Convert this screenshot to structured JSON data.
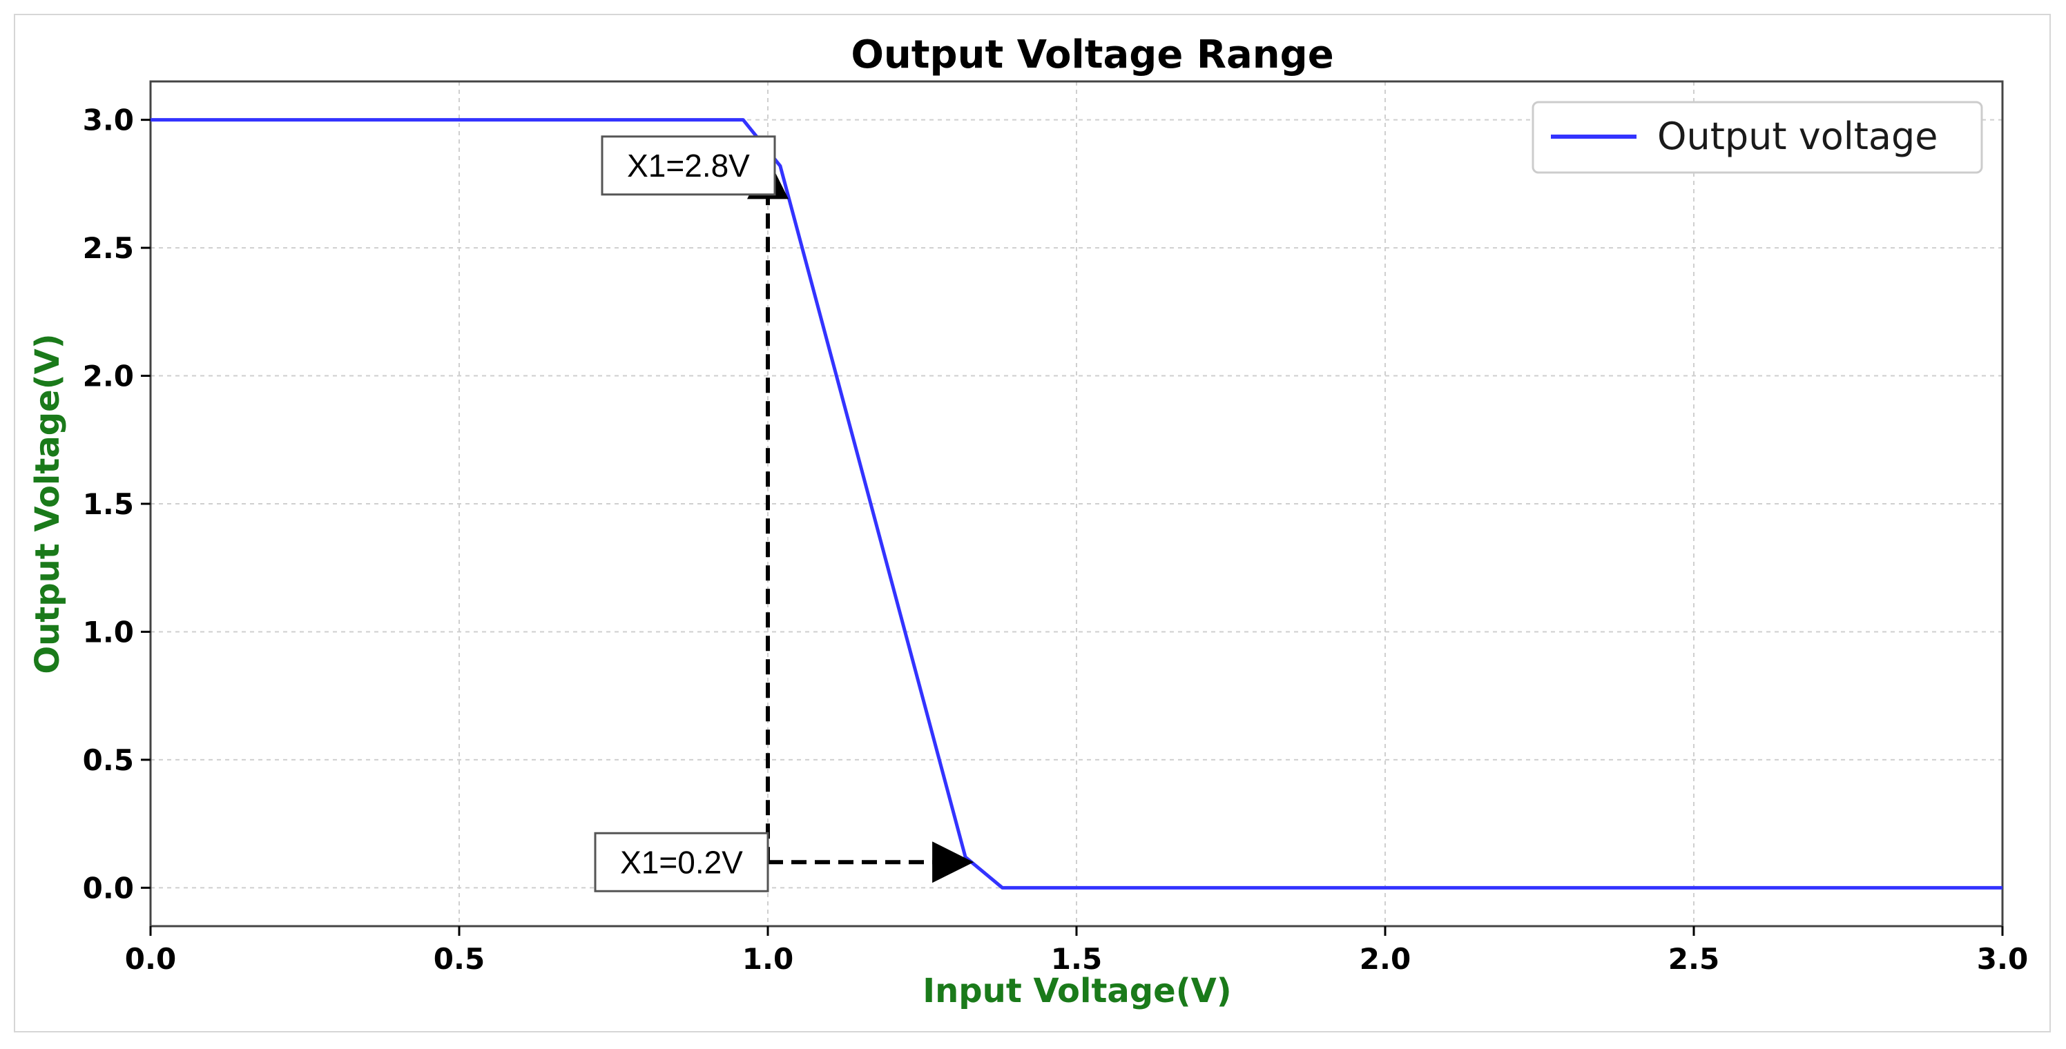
{
  "chart_data": {
    "type": "line",
    "title": "Output Voltage Range",
    "xlabel": "Input Voltage(V)",
    "ylabel": "Output Voltage(V)",
    "xlim": [
      0.0,
      3.0
    ],
    "ylim": [
      -0.15,
      3.15
    ],
    "x_ticks": [
      0.0,
      0.5,
      1.0,
      1.5,
      2.0,
      2.5,
      3.0
    ],
    "x_tick_labels": [
      "0.0",
      "0.5",
      "1.0",
      "1.5",
      "2.0",
      "2.5",
      "3.0"
    ],
    "y_ticks": [
      0.0,
      0.5,
      1.0,
      1.5,
      2.0,
      2.5,
      3.0
    ],
    "y_tick_labels": [
      "0.0",
      "0.5",
      "1.0",
      "1.5",
      "2.0",
      "2.5",
      "3.0"
    ],
    "grid": true,
    "legend_position": "top-right",
    "label_color": "#1a7a1a",
    "series": [
      {
        "name": "Output voltage",
        "color": "#3333ff",
        "x": [
          0.0,
          0.96,
          1.02,
          1.32,
          1.38,
          3.0
        ],
        "y": [
          3.0,
          3.0,
          2.82,
          0.12,
          0.0,
          0.0
        ]
      }
    ],
    "annotations": [
      {
        "text": "X1=2.8V",
        "x": 1.0,
        "y": 2.8
      },
      {
        "text": "X1=0.2V",
        "x": 1.0,
        "y": 0.1
      }
    ],
    "reference_lines": [
      {
        "style": "dashed",
        "color": "#000000",
        "from": [
          1.0,
          0.1
        ],
        "to": [
          1.0,
          2.82
        ],
        "arrow": "end"
      },
      {
        "style": "dashed",
        "color": "#000000",
        "from": [
          1.0,
          0.1
        ],
        "to": [
          1.32,
          0.1
        ],
        "arrow": "end"
      }
    ]
  }
}
